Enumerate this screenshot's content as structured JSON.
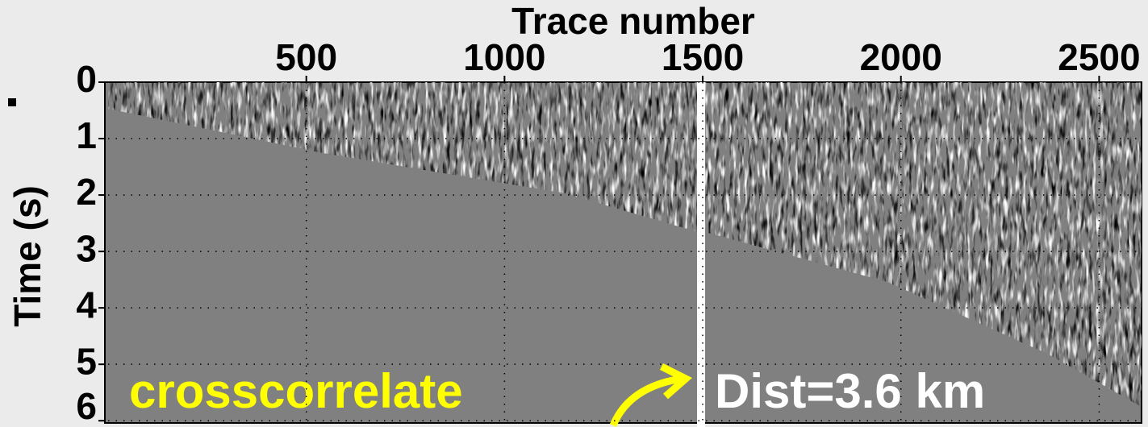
{
  "chart_data": {
    "type": "seismic",
    "x_label": "Trace number",
    "y_label": "Time (s)",
    "xlim": [
      0,
      2607
    ],
    "xticks": [
      500,
      1000,
      1500,
      2000,
      2500
    ],
    "ylim": [
      0,
      6.04
    ],
    "yticks": [
      0,
      1,
      2,
      3,
      4,
      5,
      6
    ],
    "grid": true,
    "annotations": [
      "crosscorrelate",
      "Dist=3.6 km"
    ]
  }
}
